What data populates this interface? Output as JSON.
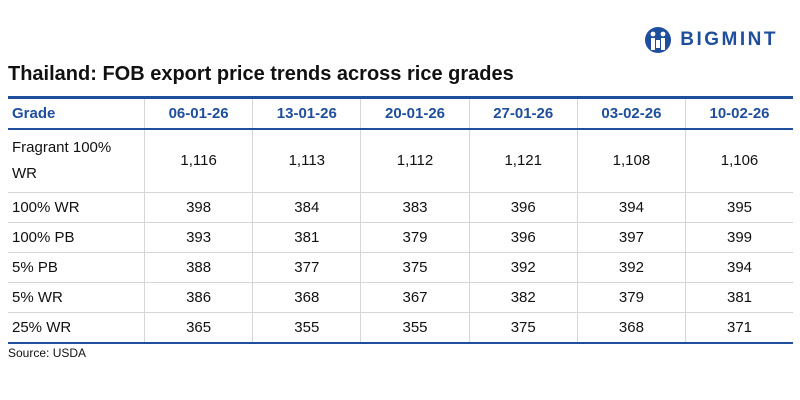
{
  "header": {
    "brand": "BIGMINT",
    "title": "Thailand: FOB export price trends across rice grades"
  },
  "table": {
    "columns": [
      "Grade",
      "06-01-26",
      "13-01-26",
      "20-01-26",
      "27-01-26",
      "03-02-26",
      "10-02-26"
    ],
    "rows": [
      [
        "Fragrant 100% WR",
        "1,116",
        "1,113",
        "1,112",
        "1,121",
        "1,108",
        "1,106"
      ],
      [
        "100% WR",
        "398",
        "384",
        "383",
        "396",
        "394",
        "395"
      ],
      [
        "100% PB",
        "393",
        "381",
        "379",
        "396",
        "397",
        "399"
      ],
      [
        "5% PB",
        "388",
        "377",
        "375",
        "392",
        "392",
        "394"
      ],
      [
        "5% WR",
        "386",
        "368",
        "367",
        "382",
        "379",
        "381"
      ],
      [
        "25% WR",
        "365",
        "355",
        "355",
        "375",
        "368",
        "371"
      ]
    ]
  },
  "footer": {
    "source": "Source: USDA"
  }
}
